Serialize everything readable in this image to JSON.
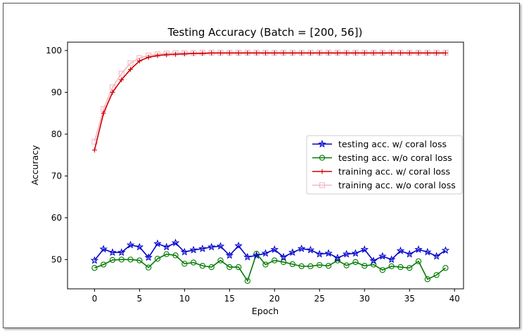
{
  "chart_data": {
    "type": "line",
    "title": "Testing Accuracy (Batch = [200, 56])",
    "xlabel": "Epoch",
    "ylabel": "Accuracy",
    "xlim": [
      -3,
      41
    ],
    "ylim": [
      43,
      102
    ],
    "xticks": [
      0,
      5,
      10,
      15,
      20,
      25,
      30,
      35,
      40
    ],
    "yticks": [
      50,
      60,
      70,
      80,
      90,
      100
    ],
    "x": [
      0,
      1,
      2,
      3,
      4,
      5,
      6,
      7,
      8,
      9,
      10,
      11,
      12,
      13,
      14,
      15,
      16,
      17,
      18,
      19,
      20,
      21,
      22,
      23,
      24,
      25,
      26,
      27,
      28,
      29,
      30,
      31,
      32,
      33,
      34,
      35,
      36,
      37,
      38,
      39
    ],
    "legend_position": "center-right",
    "series": [
      {
        "name": "testing acc. w/ coral loss",
        "color": "#0000cc",
        "marker": "star",
        "values": [
          49.8,
          52.5,
          51.7,
          51.7,
          53.5,
          53.0,
          50.5,
          53.8,
          53.0,
          54.0,
          51.8,
          52.3,
          52.6,
          53.0,
          53.2,
          51.0,
          53.3,
          50.6,
          51.0,
          51.5,
          52.4,
          50.6,
          51.7,
          52.6,
          52.3,
          51.3,
          51.5,
          50.4,
          51.3,
          51.5,
          52.4,
          49.7,
          50.8,
          50.0,
          52.1,
          51.3,
          52.4,
          51.8,
          50.8,
          52.2
        ]
      },
      {
        "name": "testing acc. w/o coral loss",
        "color": "#007a00",
        "marker": "circle",
        "values": [
          48.0,
          48.8,
          49.9,
          50.0,
          50.0,
          49.8,
          48.1,
          50.2,
          51.3,
          51.0,
          49.0,
          49.3,
          48.5,
          48.2,
          49.8,
          48.2,
          48.2,
          44.9,
          51.4,
          48.8,
          49.8,
          49.4,
          48.9,
          48.4,
          48.4,
          48.7,
          48.5,
          49.8,
          48.6,
          49.4,
          48.5,
          48.8,
          47.5,
          48.4,
          48.2,
          48.0,
          49.6,
          45.3,
          46.3,
          48.0
        ]
      },
      {
        "name": "training acc. w/ coral loss",
        "color": "#cc0000",
        "marker": "plus",
        "values": [
          76.2,
          85.0,
          90.0,
          93.0,
          95.5,
          97.5,
          98.4,
          98.8,
          99.0,
          99.1,
          99.2,
          99.3,
          99.3,
          99.4,
          99.4,
          99.4,
          99.4,
          99.4,
          99.4,
          99.4,
          99.4,
          99.4,
          99.4,
          99.4,
          99.4,
          99.4,
          99.4,
          99.4,
          99.4,
          99.4,
          99.4,
          99.4,
          99.4,
          99.4,
          99.4,
          99.4,
          99.4,
          99.4,
          99.4,
          99.4
        ]
      },
      {
        "name": "training acc. w/o coral loss",
        "color": "#f4b6c2",
        "marker": "square",
        "values": [
          78.2,
          86.0,
          91.2,
          94.5,
          97.0,
          98.2,
          98.8,
          99.1,
          99.3,
          99.4,
          99.4,
          99.4,
          99.5,
          99.5,
          99.5,
          99.5,
          99.5,
          99.5,
          99.5,
          99.5,
          99.5,
          99.5,
          99.5,
          99.5,
          99.5,
          99.5,
          99.5,
          99.5,
          99.5,
          99.5,
          99.5,
          99.5,
          99.5,
          99.5,
          99.5,
          99.5,
          99.5,
          99.5,
          99.5,
          99.5
        ]
      }
    ]
  }
}
